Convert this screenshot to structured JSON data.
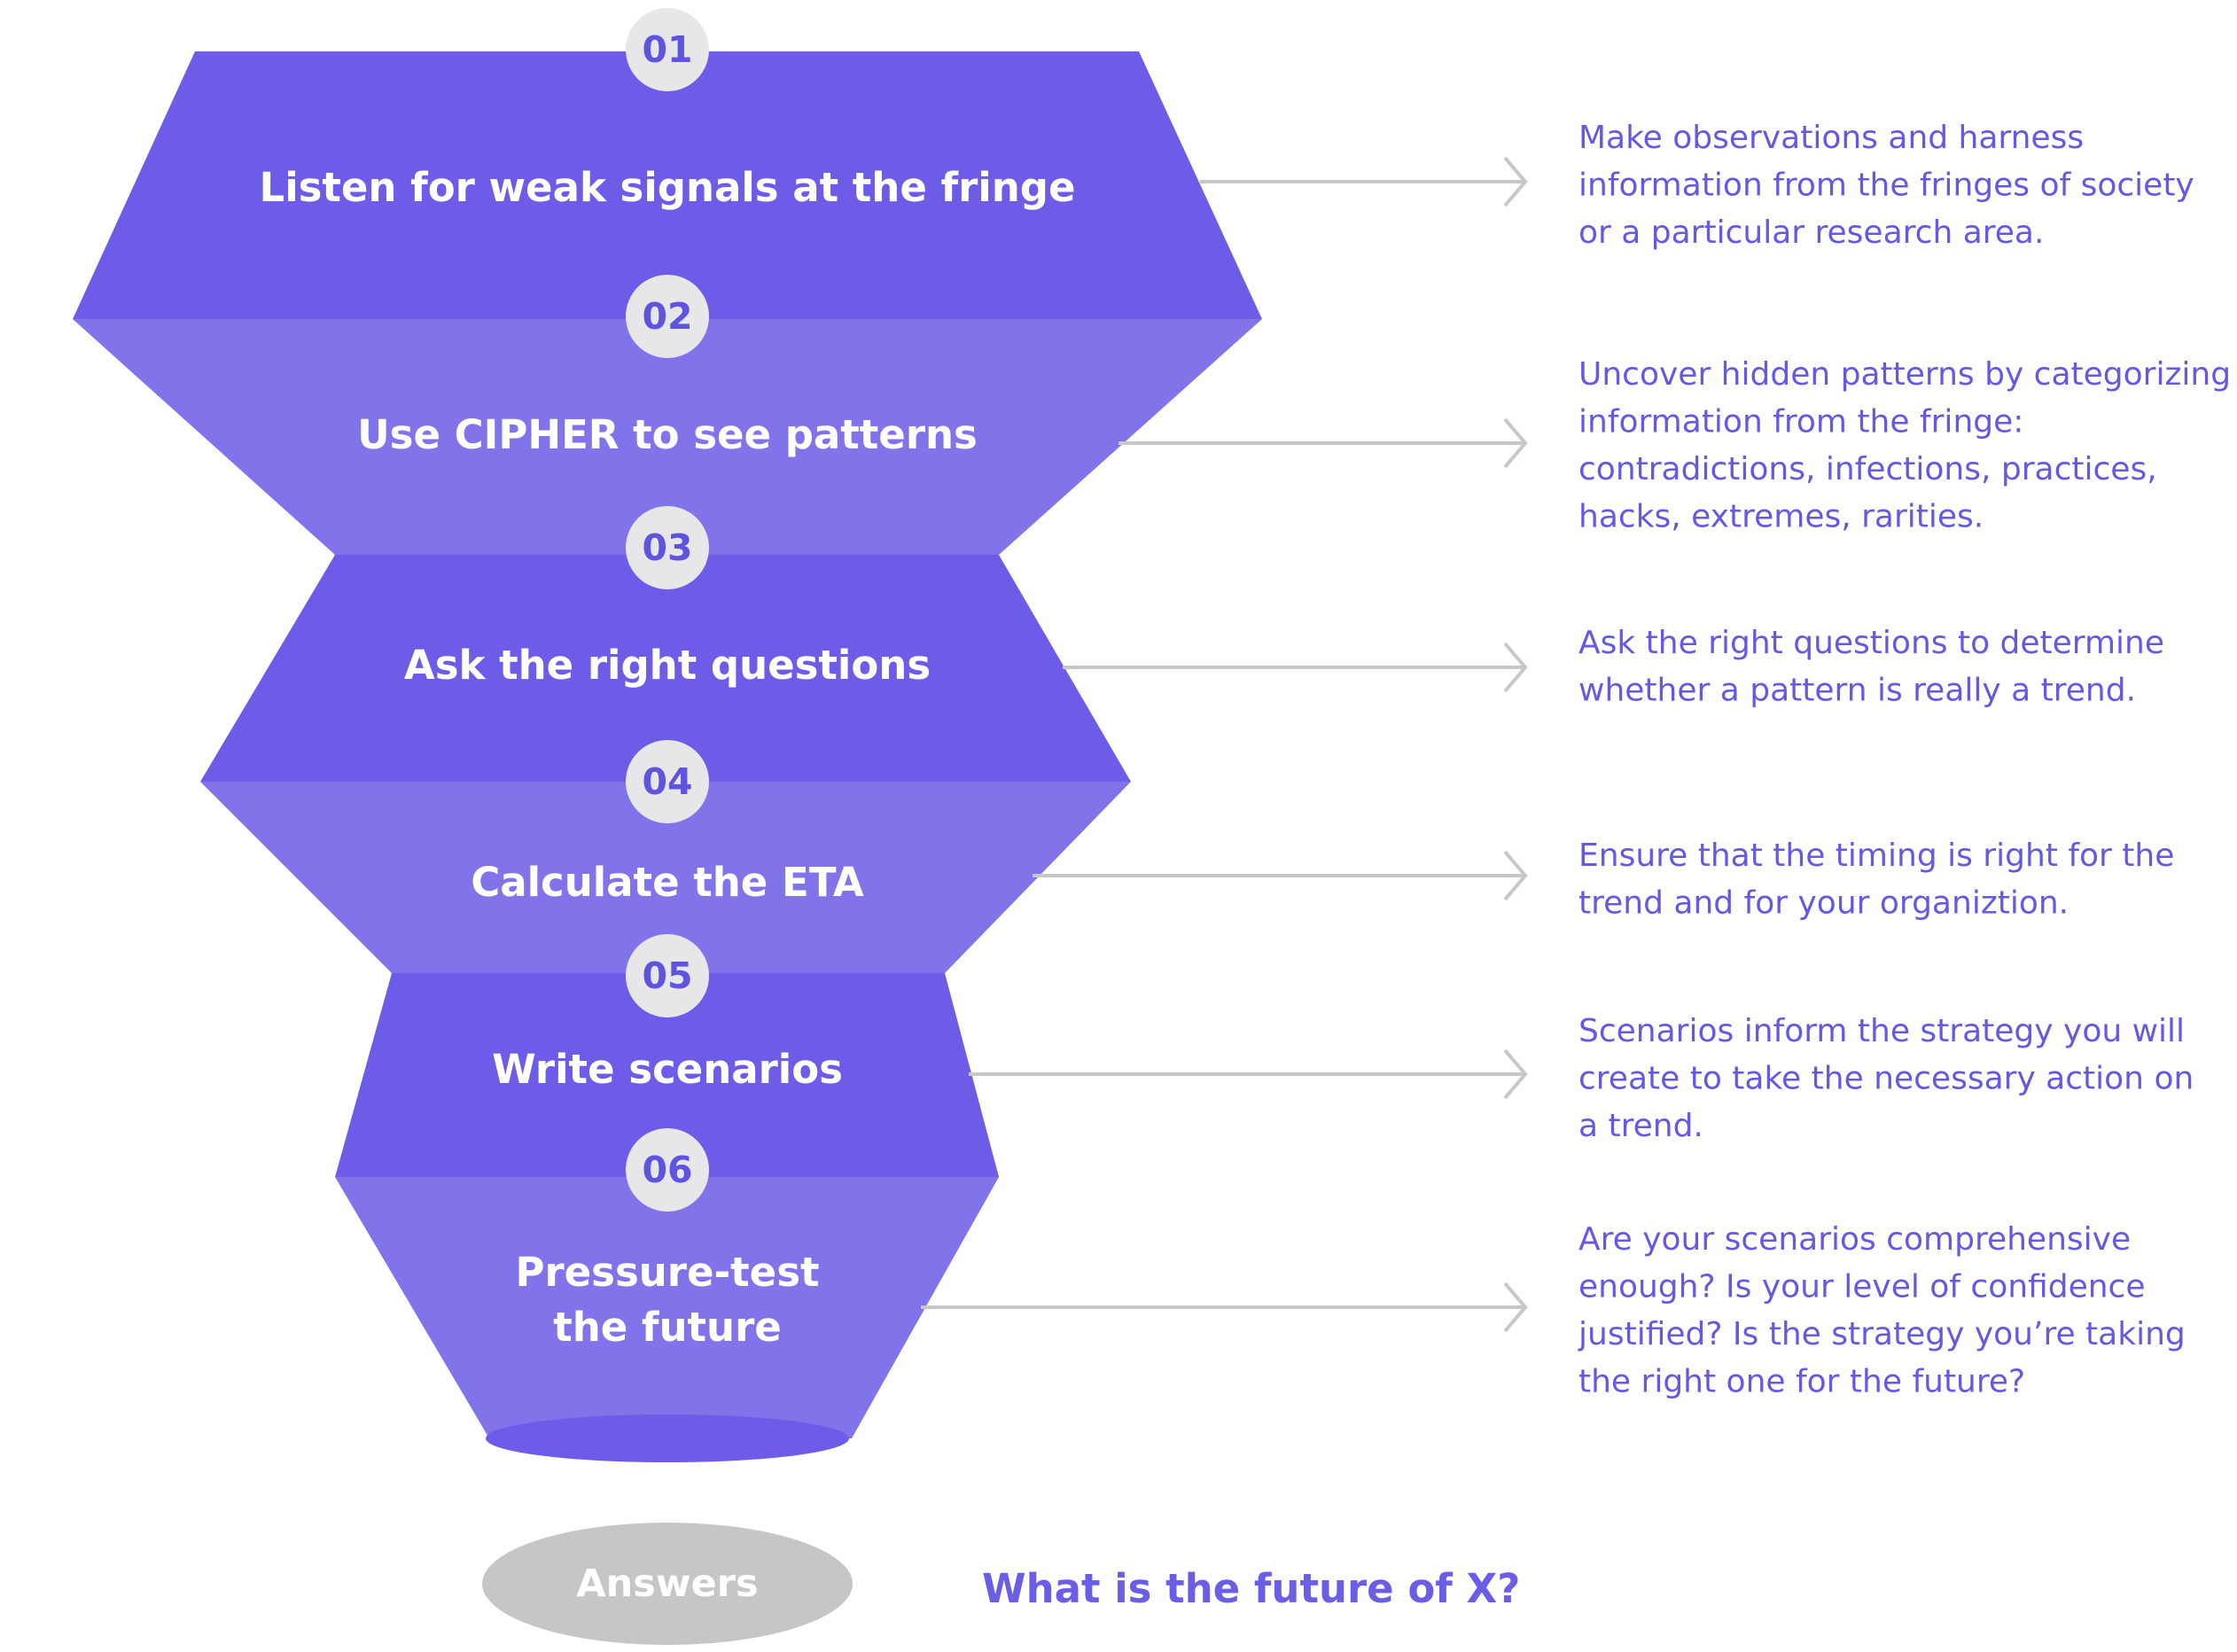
{
  "colors": {
    "dark_band": "#6c5ce7",
    "light_band": "#8174ea",
    "badge_fill": "#e7e7e9",
    "badge_text": "#5e54df",
    "arrow": "#c7c7c9",
    "description": "#6459e2",
    "answers_fill": "#c6c6c8",
    "question": "#6a5de6"
  },
  "steps": [
    {
      "number": "01",
      "title_lines": [
        "Listen for weak signals at the fringe"
      ],
      "description_lines": [
        "Make observations and harness",
        "information from the fringes of society",
        "or a particular research area."
      ]
    },
    {
      "number": "02",
      "title_lines": [
        "Use CIPHER to see patterns"
      ],
      "description_lines": [
        "Uncover hidden patterns by categorizing",
        "information from the fringe:",
        "contradictions, infections, practices,",
        "hacks, extremes, rarities."
      ]
    },
    {
      "number": "03",
      "title_lines": [
        "Ask the right questions"
      ],
      "description_lines": [
        "Ask the right questions to determine",
        "whether a pattern is really a trend."
      ]
    },
    {
      "number": "04",
      "title_lines": [
        "Calculate the ETA"
      ],
      "description_lines": [
        "Ensure that the timing is right for the",
        "trend and for your organiztion."
      ]
    },
    {
      "number": "05",
      "title_lines": [
        "Write scenarios"
      ],
      "description_lines": [
        "Scenarios inform the strategy you will",
        "create to take the necessary action on",
        "a trend."
      ]
    },
    {
      "number": "06",
      "title_lines": [
        "Pressure-test",
        "the future"
      ],
      "description_lines": [
        "Are your scenarios comprehensive",
        "enough? Is your level of confidence",
        "justified? Is the strategy you’re taking",
        "the right one for the future?"
      ]
    }
  ],
  "answers_label": "Answers",
  "question_label": "What is the future of X?"
}
